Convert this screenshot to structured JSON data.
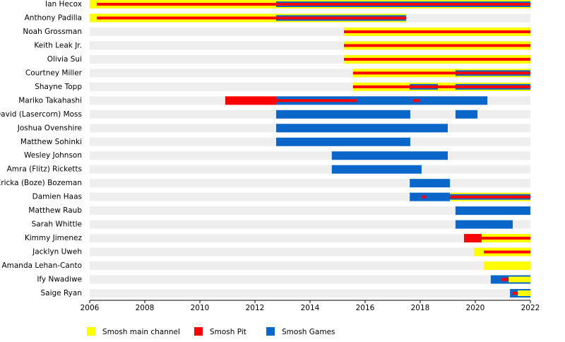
{
  "chart_data": {
    "type": "timeline",
    "series": [
      {
        "name": "Smosh main channel",
        "color": "#ffff00"
      },
      {
        "name": "Smosh Pit",
        "color": "#ff0000"
      },
      {
        "name": "Smosh Games",
        "color": "#0a66c8"
      }
    ],
    "xlim": [
      2006,
      2022
    ],
    "xticks": [
      2006,
      2008,
      2010,
      2012,
      2014,
      2016,
      2018,
      2020,
      2022
    ],
    "rows": [
      {
        "name": "Ian Hecox",
        "segments": [
          {
            "series": 0,
            "start": 2006,
            "end": 2022
          },
          {
            "series": 2,
            "start": 2012.77,
            "end": 2022
          },
          {
            "series": 1,
            "start": 2006.26,
            "end": 2022
          }
        ]
      },
      {
        "name": "Anthony Padilla",
        "segments": [
          {
            "series": 0,
            "start": 2006,
            "end": 2017.49
          },
          {
            "series": 2,
            "start": 2012.77,
            "end": 2017.49
          },
          {
            "series": 1,
            "start": 2006.26,
            "end": 2017.49
          }
        ]
      },
      {
        "name": "Noah Grossman",
        "segments": [
          {
            "series": 0,
            "start": 2015.23,
            "end": 2022
          },
          {
            "series": 1,
            "start": 2015.23,
            "end": 2022
          }
        ]
      },
      {
        "name": "Keith Leak Jr.",
        "segments": [
          {
            "series": 0,
            "start": 2015.23,
            "end": 2022
          },
          {
            "series": 1,
            "start": 2015.23,
            "end": 2022
          }
        ]
      },
      {
        "name": "Olivia Sui",
        "segments": [
          {
            "series": 0,
            "start": 2015.23,
            "end": 2022
          },
          {
            "series": 1,
            "start": 2015.23,
            "end": 2022
          }
        ]
      },
      {
        "name": "Courtney Miller",
        "segments": [
          {
            "series": 0,
            "start": 2015.56,
            "end": 2022
          },
          {
            "series": 2,
            "start": 2019.28,
            "end": 2022
          },
          {
            "series": 1,
            "start": 2015.56,
            "end": 2022
          }
        ]
      },
      {
        "name": "Shayne Topp",
        "segments": [
          {
            "series": 0,
            "start": 2015.56,
            "end": 2022
          },
          {
            "series": 2,
            "start": 2017.62,
            "end": 2018.64
          },
          {
            "series": 2,
            "start": 2019.28,
            "end": 2022
          },
          {
            "series": 1,
            "start": 2015.56,
            "end": 2022
          }
        ]
      },
      {
        "name": "Mariko Takahashi",
        "segments": [
          {
            "series": 1,
            "start": 2010.92,
            "end": 2012.77
          },
          {
            "series": 2,
            "start": 2012.77,
            "end": 2020.44
          },
          {
            "series": 1,
            "start": 2012.77,
            "end": 2015.69
          },
          {
            "series": 1,
            "start": 2017.74,
            "end": 2017.99
          }
        ]
      },
      {
        "name": "David (Lasercorn) Moss",
        "segments": [
          {
            "series": 2,
            "start": 2012.77,
            "end": 2017.64
          },
          {
            "series": 2,
            "start": 2019.28,
            "end": 2020.08
          }
        ]
      },
      {
        "name": "Joshua Ovenshire",
        "segments": [
          {
            "series": 2,
            "start": 2012.77,
            "end": 2019.0
          }
        ]
      },
      {
        "name": "Matthew Sohinki",
        "segments": [
          {
            "series": 2,
            "start": 2012.77,
            "end": 2017.64
          }
        ]
      },
      {
        "name": "Wesley Johnson",
        "segments": [
          {
            "series": 2,
            "start": 2014.79,
            "end": 2019.0
          }
        ]
      },
      {
        "name": "Amra (Flitz) Ricketts",
        "segments": [
          {
            "series": 2,
            "start": 2014.79,
            "end": 2018.05
          }
        ]
      },
      {
        "name": "Ericka (Boze) Bozeman",
        "segments": [
          {
            "series": 2,
            "start": 2017.62,
            "end": 2019.08
          }
        ]
      },
      {
        "name": "Damien Haas",
        "segments": [
          {
            "series": 2,
            "start": 2017.62,
            "end": 2019.08
          },
          {
            "series": 0,
            "start": 2019.08,
            "end": 2022
          },
          {
            "series": 2,
            "start": 2019.08,
            "end": 2022
          },
          {
            "series": 1,
            "start": 2019.08,
            "end": 2022
          },
          {
            "series": 1,
            "start": 2018.05,
            "end": 2018.21
          }
        ]
      },
      {
        "name": "Matthew Raub",
        "segments": [
          {
            "series": 2,
            "start": 2019.28,
            "end": 2022
          }
        ]
      },
      {
        "name": "Sarah Whittle",
        "segments": [
          {
            "series": 2,
            "start": 2019.28,
            "end": 2021.36
          }
        ]
      },
      {
        "name": "Kimmy Jimenez",
        "segments": [
          {
            "series": 1,
            "start": 2019.59,
            "end": 2020.23
          },
          {
            "series": 0,
            "start": 2020.23,
            "end": 2022
          },
          {
            "series": 1,
            "start": 2020.23,
            "end": 2022
          }
        ]
      },
      {
        "name": "Jacklyn Uweh",
        "segments": [
          {
            "series": 0,
            "start": 2019.95,
            "end": 2022
          },
          {
            "series": 1,
            "start": 2020.31,
            "end": 2022
          }
        ]
      },
      {
        "name": "Amanda Lehan-Canto",
        "segments": [
          {
            "series": 0,
            "start": 2020.31,
            "end": 2022
          }
        ]
      },
      {
        "name": "Ify Nwadiwe",
        "segments": [
          {
            "series": 2,
            "start": 2020.56,
            "end": 2022
          },
          {
            "series": 0,
            "start": 2021.21,
            "end": 2022
          },
          {
            "series": 1,
            "start": 2020.95,
            "end": 2021.21
          }
        ]
      },
      {
        "name": "Saige Ryan",
        "segments": [
          {
            "series": 2,
            "start": 2021.26,
            "end": 2022
          },
          {
            "series": 0,
            "start": 2021.54,
            "end": 2022
          },
          {
            "series": 1,
            "start": 2021.36,
            "end": 2021.54
          }
        ]
      }
    ]
  }
}
